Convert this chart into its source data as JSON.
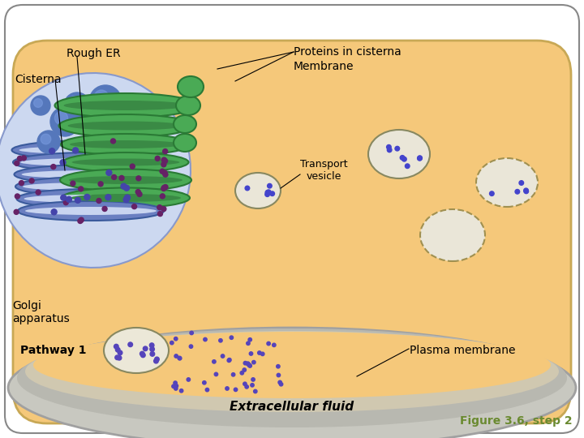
{
  "title": "",
  "labels": {
    "rough_er": "Rough ER",
    "cisterna": "Cisterna",
    "proteins_in_cisterna": "Proteins in cisterna",
    "membrane": "Membrane",
    "transport_vesicle": "Transport\nvesicle",
    "golgi_apparatus": "Golgi\napparatus",
    "pathway_1": "Pathway 1",
    "plasma_membrane": "Plasma membrane",
    "extracellular_fluid": "Extracellular fluid",
    "figure_caption": "Figure 3.6, step 2"
  },
  "colors": {
    "figure_bg": "#ffffff",
    "background_color": "#ffffff",
    "cell_fill": "#f5c87a",
    "cell_border": "#c8a855",
    "er_membrane": "#6a7fc1",
    "er_dark": "#3a5a9c",
    "er_lumen": "#c8d4f0",
    "golgi_green": "#4aaa55",
    "golgi_dark": "#2a7a35",
    "vesicle_fill": "#e8e0cc",
    "vesicle_border": "#a09060",
    "protein_dot": "#5555cc",
    "protein_dot2": "#8844aa",
    "plasma_mem": "#c8c8c8",
    "plasma_mem2": "#a0a0a0",
    "outer_bg": "#e8e8e0",
    "label_color": "#000000",
    "figure_caption_color": "#6a8a30",
    "extracellular_color": "#000000"
  }
}
